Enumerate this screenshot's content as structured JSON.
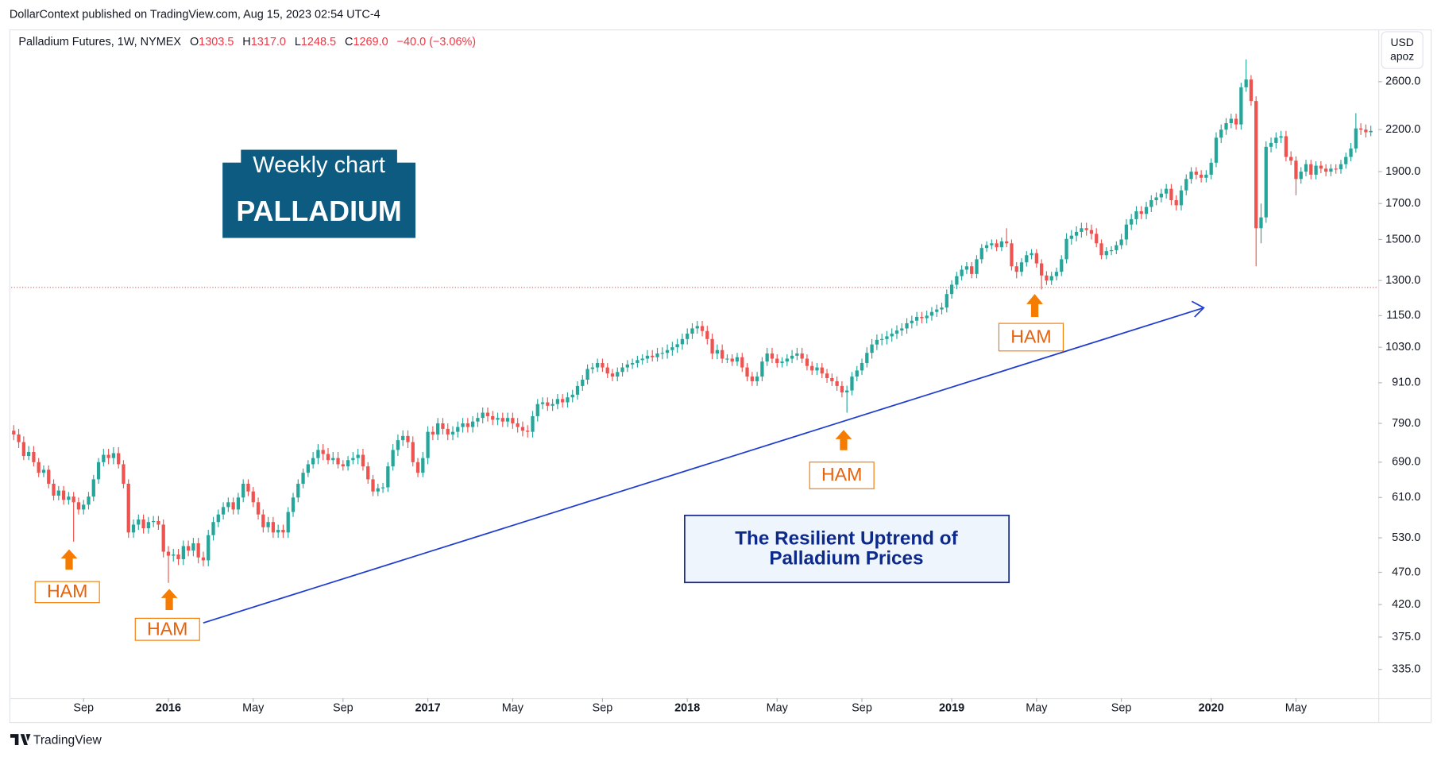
{
  "header": {
    "publisher": "DollarContext published on TradingView.com, Aug 15, 2023 02:54 UTC-4",
    "symbol": "Palladium Futures, 1W, NYMEX",
    "ohlc": [
      {
        "key": "O",
        "value": "1303.5"
      },
      {
        "key": "H",
        "value": "1317.0"
      },
      {
        "key": "L",
        "value": "1248.5"
      },
      {
        "key": "C",
        "value": "1269.0"
      }
    ],
    "change": "−40.0 (−3.06%)"
  },
  "currency": {
    "unit": "USD",
    "measure": "apoz"
  },
  "chart_data": {
    "type": "candlestick",
    "log_scale": true,
    "grid": false,
    "up_color": "#26a69a",
    "down_color": "#ef5350",
    "last_price_color": "#ef5350",
    "last_price": 1269,
    "xlim": [
      -0.5,
      273.5
    ],
    "ylim": [
      303,
      3120
    ],
    "yticks": [
      {
        "value": 335,
        "label": "335.0"
      },
      {
        "value": 375,
        "label": "375.0"
      },
      {
        "value": 420,
        "label": "420.0"
      },
      {
        "value": 470,
        "label": "470.0"
      },
      {
        "value": 530,
        "label": "530.0"
      },
      {
        "value": 610,
        "label": "610.0"
      },
      {
        "value": 690,
        "label": "690.0"
      },
      {
        "value": 790,
        "label": "790.0"
      },
      {
        "value": 910,
        "label": "910.0"
      },
      {
        "value": 1030,
        "label": "1030.0"
      },
      {
        "value": 1150,
        "label": "1150.0"
      },
      {
        "value": 1300,
        "label": "1300.0"
      },
      {
        "value": 1500,
        "label": "1500.0"
      },
      {
        "value": 1700,
        "label": "1700.0"
      },
      {
        "value": 1900,
        "label": "1900.0"
      },
      {
        "value": 2200,
        "label": "2200.0"
      },
      {
        "value": 2600,
        "label": "2600.0"
      }
    ],
    "xticks": [
      {
        "value": 14,
        "label": "Sep"
      },
      {
        "value": 31,
        "label": "2016",
        "bold": true
      },
      {
        "value": 48,
        "label": "May"
      },
      {
        "value": 66,
        "label": "Sep"
      },
      {
        "value": 83,
        "label": "2017",
        "bold": true
      },
      {
        "value": 100,
        "label": "May"
      },
      {
        "value": 118,
        "label": "Sep"
      },
      {
        "value": 135,
        "label": "2018",
        "bold": true
      },
      {
        "value": 153,
        "label": "May"
      },
      {
        "value": 170,
        "label": "Sep"
      },
      {
        "value": 188,
        "label": "2019",
        "bold": true
      },
      {
        "value": 205,
        "label": "May"
      },
      {
        "value": 222,
        "label": "Sep"
      },
      {
        "value": 240,
        "label": "2020",
        "bold": true
      },
      {
        "value": 257,
        "label": "May"
      }
    ],
    "open": [
      770,
      760,
      740,
      705,
      715,
      690,
      665,
      672,
      640,
      614,
      625,
      605,
      612,
      600,
      585,
      595,
      612,
      650,
      690,
      708,
      700,
      712,
      685,
      640,
      540,
      555,
      565,
      548,
      560,
      562,
      555,
      505,
      498,
      500,
      492,
      515,
      507,
      520,
      495,
      490,
      535,
      560,
      575,
      590,
      600,
      585,
      610,
      640,
      623,
      600,
      575,
      550,
      560,
      540,
      545,
      540,
      580,
      610,
      640,
      665,
      685,
      700,
      720,
      710,
      695,
      700,
      685,
      680,
      695,
      700,
      708,
      680,
      650,
      623,
      630,
      632,
      680,
      720,
      745,
      756,
      740,
      690,
      665,
      700,
      767,
      760,
      790,
      775,
      760,
      767,
      780,
      790,
      780,
      795,
      805,
      820,
      810,
      800,
      805,
      795,
      805,
      790,
      780,
      770,
      767,
      810,
      845,
      850,
      840,
      845,
      860,
      850,
      865,
      873,
      900,
      920,
      955,
      960,
      975,
      960,
      940,
      930,
      945,
      960,
      970,
      975,
      985,
      990,
      1000,
      995,
      1008,
      1010,
      1020,
      1030,
      1041,
      1060,
      1080,
      1100,
      1109,
      1090,
      1060,
      1008,
      1020,
      990,
      990,
      980,
      995,
      960,
      930,
      915,
      930,
      980,
      1008,
      990,
      975,
      980,
      990,
      1000,
      1008,
      990,
      965,
      950,
      960,
      940,
      925,
      915,
      900,
      880,
      886,
      930,
      950,
      975,
      1010,
      1040,
      1057,
      1060,
      1070,
      1080,
      1092,
      1100,
      1120,
      1130,
      1145,
      1140,
      1150,
      1165,
      1175,
      1183,
      1240,
      1281,
      1320,
      1350,
      1366,
      1330,
      1400,
      1456,
      1470,
      1480,
      1460,
      1490,
      1480,
      1366,
      1340,
      1385,
      1420,
      1430,
      1380,
      1323,
      1300,
      1320,
      1340,
      1400,
      1503,
      1520,
      1540,
      1560,
      1550,
      1530,
      1480,
      1420,
      1440,
      1445,
      1470,
      1500,
      1580,
      1610,
      1655,
      1640,
      1680,
      1720,
      1737,
      1760,
      1790,
      1720,
      1690,
      1780,
      1852,
      1900,
      1880,
      1860,
      1880,
      1960,
      2139,
      2200,
      2250,
      2285,
      2240,
      2550,
      2620,
      2431,
      1560,
      1620,
      2072,
      2100,
      2139,
      2150,
      2000,
      1974,
      1852,
      1900,
      1950,
      1880,
      1940,
      1920,
      1900,
      1920,
      1916,
      1950,
      2000,
      2060,
      2209,
      2200,
      2180
    ],
    "high": [
      785,
      775,
      755,
      730,
      730,
      700,
      682,
      682,
      650,
      635,
      635,
      622,
      622,
      610,
      605,
      622,
      660,
      700,
      723,
      723,
      727,
      727,
      695,
      650,
      565,
      575,
      575,
      570,
      572,
      572,
      565,
      515,
      510,
      510,
      525,
      525,
      530,
      530,
      505,
      545,
      570,
      585,
      600,
      610,
      610,
      620,
      650,
      650,
      633,
      610,
      585,
      570,
      570,
      555,
      555,
      590,
      620,
      650,
      675,
      695,
      715,
      735,
      735,
      725,
      715,
      715,
      695,
      705,
      715,
      723,
      723,
      690,
      660,
      640,
      642,
      690,
      735,
      760,
      771,
      771,
      755,
      700,
      715,
      782,
      782,
      805,
      805,
      790,
      782,
      795,
      805,
      805,
      810,
      820,
      835,
      835,
      825,
      820,
      820,
      820,
      820,
      805,
      795,
      785,
      825,
      860,
      865,
      865,
      860,
      875,
      875,
      880,
      888,
      915,
      935,
      970,
      975,
      990,
      990,
      975,
      955,
      960,
      975,
      985,
      990,
      1000,
      1005,
      1020,
      1020,
      1028,
      1030,
      1040,
      1050,
      1061,
      1080,
      1100,
      1120,
      1129,
      1129,
      1110,
      1080,
      1040,
      1040,
      1005,
      1005,
      1010,
      1010,
      975,
      945,
      945,
      995,
      1028,
      1028,
      1005,
      995,
      1005,
      1020,
      1028,
      1028,
      1005,
      980,
      975,
      975,
      955,
      940,
      930,
      915,
      901,
      945,
      965,
      990,
      1030,
      1060,
      1077,
      1080,
      1090,
      1100,
      1112,
      1120,
      1140,
      1150,
      1165,
      1165,
      1170,
      1185,
      1195,
      1203,
      1260,
      1301,
      1340,
      1370,
      1386,
      1386,
      1420,
      1476,
      1490,
      1500,
      1500,
      1510,
      1560,
      1500,
      1386,
      1405,
      1440,
      1450,
      1450,
      1400,
      1343,
      1340,
      1360,
      1420,
      1533,
      1550,
      1570,
      1590,
      1590,
      1580,
      1560,
      1500,
      1460,
      1465,
      1490,
      1530,
      1610,
      1640,
      1685,
      1685,
      1710,
      1750,
      1767,
      1790,
      1820,
      1820,
      1750,
      1810,
      1882,
      1930,
      1930,
      1910,
      1910,
      1990,
      2179,
      2240,
      2290,
      2325,
      2325,
      2590,
      2810,
      2660,
      2471,
      1700,
      2112,
      2140,
      2179,
      2190,
      2190,
      2040,
      2004,
      1930,
      1980,
      1980,
      1970,
      1970,
      1950,
      1950,
      1950,
      1980,
      2030,
      2100,
      2330,
      2249,
      2240,
      2230
    ],
    "low": [
      745,
      725,
      695,
      695,
      680,
      655,
      655,
      630,
      604,
      604,
      595,
      595,
      523,
      575,
      575,
      585,
      602,
      640,
      680,
      685,
      685,
      675,
      630,
      530,
      530,
      545,
      538,
      538,
      550,
      545,
      495,
      453,
      488,
      482,
      482,
      497,
      497,
      485,
      480,
      480,
      525,
      550,
      565,
      580,
      575,
      575,
      600,
      613,
      590,
      565,
      540,
      540,
      530,
      530,
      530,
      530,
      570,
      600,
      630,
      655,
      675,
      685,
      695,
      685,
      685,
      675,
      670,
      670,
      685,
      685,
      670,
      640,
      613,
      613,
      620,
      622,
      670,
      705,
      730,
      725,
      680,
      655,
      655,
      685,
      745,
      745,
      760,
      745,
      745,
      752,
      765,
      765,
      765,
      780,
      790,
      795,
      785,
      785,
      780,
      780,
      775,
      765,
      755,
      752,
      752,
      795,
      830,
      825,
      825,
      830,
      835,
      835,
      850,
      858,
      885,
      905,
      940,
      945,
      945,
      925,
      915,
      915,
      930,
      945,
      955,
      960,
      970,
      975,
      980,
      980,
      988,
      990,
      1000,
      1010,
      1021,
      1040,
      1060,
      1080,
      1070,
      1040,
      988,
      988,
      975,
      975,
      965,
      965,
      945,
      915,
      900,
      900,
      915,
      965,
      975,
      960,
      960,
      965,
      975,
      985,
      975,
      950,
      935,
      935,
      925,
      910,
      900,
      885,
      865,
      820,
      871,
      915,
      935,
      960,
      990,
      1020,
      1037,
      1040,
      1050,
      1060,
      1072,
      1080,
      1100,
      1110,
      1120,
      1120,
      1130,
      1145,
      1155,
      1163,
      1220,
      1261,
      1300,
      1330,
      1310,
      1310,
      1380,
      1436,
      1450,
      1440,
      1440,
      1460,
      1346,
      1310,
      1320,
      1365,
      1400,
      1360,
      1260,
      1280,
      1280,
      1300,
      1320,
      1380,
      1473,
      1490,
      1510,
      1520,
      1500,
      1460,
      1400,
      1400,
      1420,
      1425,
      1450,
      1470,
      1550,
      1580,
      1610,
      1610,
      1650,
      1690,
      1707,
      1730,
      1690,
      1660,
      1660,
      1750,
      1822,
      1850,
      1830,
      1830,
      1850,
      1930,
      2099,
      2160,
      2210,
      2200,
      2200,
      2510,
      2391,
      1366,
      1480,
      1590,
      2032,
      2060,
      2099,
      1970,
      1944,
      1750,
      1822,
      1870,
      1850,
      1850,
      1890,
      1870,
      1870,
      1886,
      1886,
      1920,
      1970,
      2030,
      2160,
      2140,
      2150
    ],
    "close": [
      760,
      740,
      705,
      715,
      690,
      665,
      672,
      640,
      614,
      625,
      605,
      612,
      600,
      585,
      595,
      612,
      650,
      690,
      708,
      700,
      712,
      685,
      640,
      540,
      555,
      565,
      548,
      560,
      562,
      555,
      505,
      498,
      500,
      492,
      515,
      507,
      520,
      495,
      490,
      535,
      560,
      575,
      590,
      600,
      585,
      610,
      640,
      623,
      600,
      575,
      550,
      560,
      540,
      545,
      540,
      580,
      610,
      640,
      665,
      685,
      700,
      720,
      710,
      695,
      700,
      685,
      680,
      695,
      700,
      708,
      680,
      650,
      623,
      630,
      632,
      680,
      720,
      745,
      756,
      740,
      690,
      665,
      700,
      767,
      760,
      790,
      775,
      760,
      767,
      780,
      790,
      780,
      795,
      805,
      820,
      810,
      800,
      805,
      795,
      805,
      790,
      780,
      770,
      767,
      810,
      845,
      850,
      840,
      845,
      860,
      850,
      865,
      873,
      900,
      920,
      955,
      960,
      975,
      960,
      940,
      930,
      945,
      960,
      970,
      975,
      985,
      990,
      1000,
      995,
      1008,
      1010,
      1020,
      1030,
      1041,
      1060,
      1080,
      1100,
      1109,
      1090,
      1060,
      1008,
      1020,
      990,
      990,
      980,
      995,
      960,
      930,
      915,
      930,
      980,
      1008,
      990,
      975,
      980,
      990,
      1000,
      1008,
      990,
      965,
      950,
      960,
      940,
      925,
      915,
      900,
      880,
      886,
      930,
      950,
      975,
      1010,
      1040,
      1057,
      1060,
      1070,
      1080,
      1092,
      1100,
      1120,
      1130,
      1145,
      1140,
      1150,
      1165,
      1175,
      1183,
      1240,
      1281,
      1320,
      1350,
      1366,
      1330,
      1400,
      1456,
      1470,
      1480,
      1460,
      1490,
      1480,
      1366,
      1340,
      1385,
      1420,
      1430,
      1380,
      1323,
      1300,
      1320,
      1340,
      1400,
      1503,
      1520,
      1540,
      1560,
      1550,
      1530,
      1480,
      1420,
      1440,
      1445,
      1470,
      1500,
      1580,
      1610,
      1655,
      1640,
      1680,
      1720,
      1737,
      1760,
      1790,
      1720,
      1690,
      1780,
      1852,
      1900,
      1880,
      1860,
      1880,
      1960,
      2139,
      2200,
      2250,
      2285,
      2240,
      2550,
      2620,
      2431,
      1560,
      1620,
      2072,
      2100,
      2139,
      2150,
      2000,
      1974,
      1852,
      1900,
      1950,
      1880,
      1940,
      1920,
      1900,
      1920,
      1916,
      1950,
      2000,
      2060,
      2209,
      2200,
      2180,
      2190
    ],
    "annotations": {
      "title_box": {
        "caption": "Weekly chart",
        "name": "PALLADIUM"
      },
      "ham_labels": [
        "HAM",
        "HAM",
        "HAM",
        "HAM"
      ],
      "note": [
        "The Resilient Uptrend of",
        "Palladium Prices"
      ]
    }
  },
  "footer": {
    "brand": "TradingView"
  }
}
